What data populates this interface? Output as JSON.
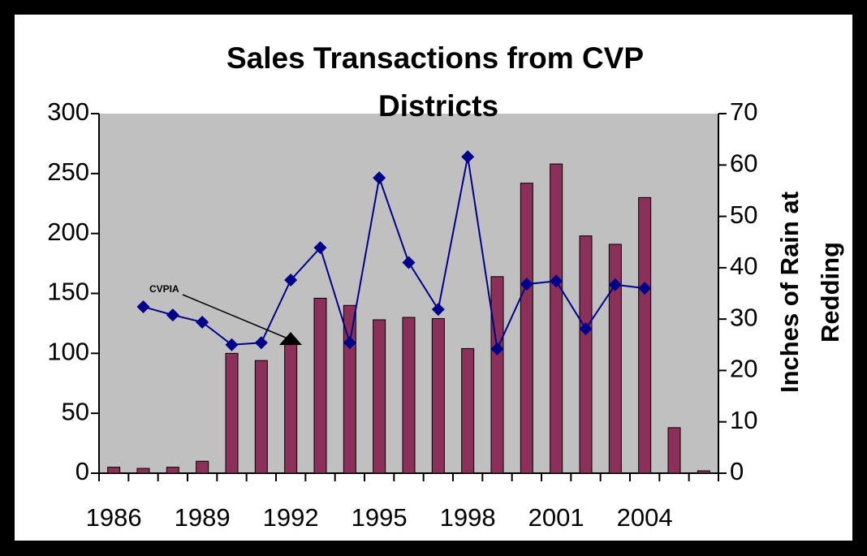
{
  "chart_data": {
    "type": "bar",
    "title": [
      "Sales Transactions from CVP",
      "Districts"
    ],
    "y2_label": [
      "Inches of Rain at",
      "Redding"
    ],
    "annotation": "CVPIA",
    "categories": [
      "1986",
      null,
      null,
      "1989",
      null,
      null,
      "1992",
      null,
      null,
      "1995",
      null,
      null,
      "1998",
      null,
      null,
      "2001",
      null,
      null,
      "2004",
      null,
      null
    ],
    "series": [
      {
        "type": "bar",
        "color": "#8b3058",
        "values": [
          5,
          4,
          5,
          10,
          100,
          94,
          108,
          146,
          140,
          128,
          130,
          129,
          104,
          164,
          242,
          258,
          198,
          191,
          230,
          38,
          2
        ]
      },
      {
        "type": "line",
        "axis": "y2",
        "color": "#00008b",
        "values": [
          null,
          32.4,
          30.8,
          29.4,
          25,
          25.4,
          37.6,
          43.9,
          25.4,
          57.5,
          41,
          31.9,
          61.6,
          24.2,
          36.8,
          37.4,
          28.1,
          36.7,
          36,
          null,
          null
        ]
      }
    ],
    "ylim": [
      0,
      300
    ],
    "yticks": [
      0,
      50,
      100,
      150,
      200,
      250,
      300
    ],
    "y2lim": [
      0,
      70
    ],
    "y2ticks": [
      0,
      10,
      20,
      30,
      40,
      50,
      60,
      70
    ],
    "plot_color": "#c0c0c0"
  }
}
